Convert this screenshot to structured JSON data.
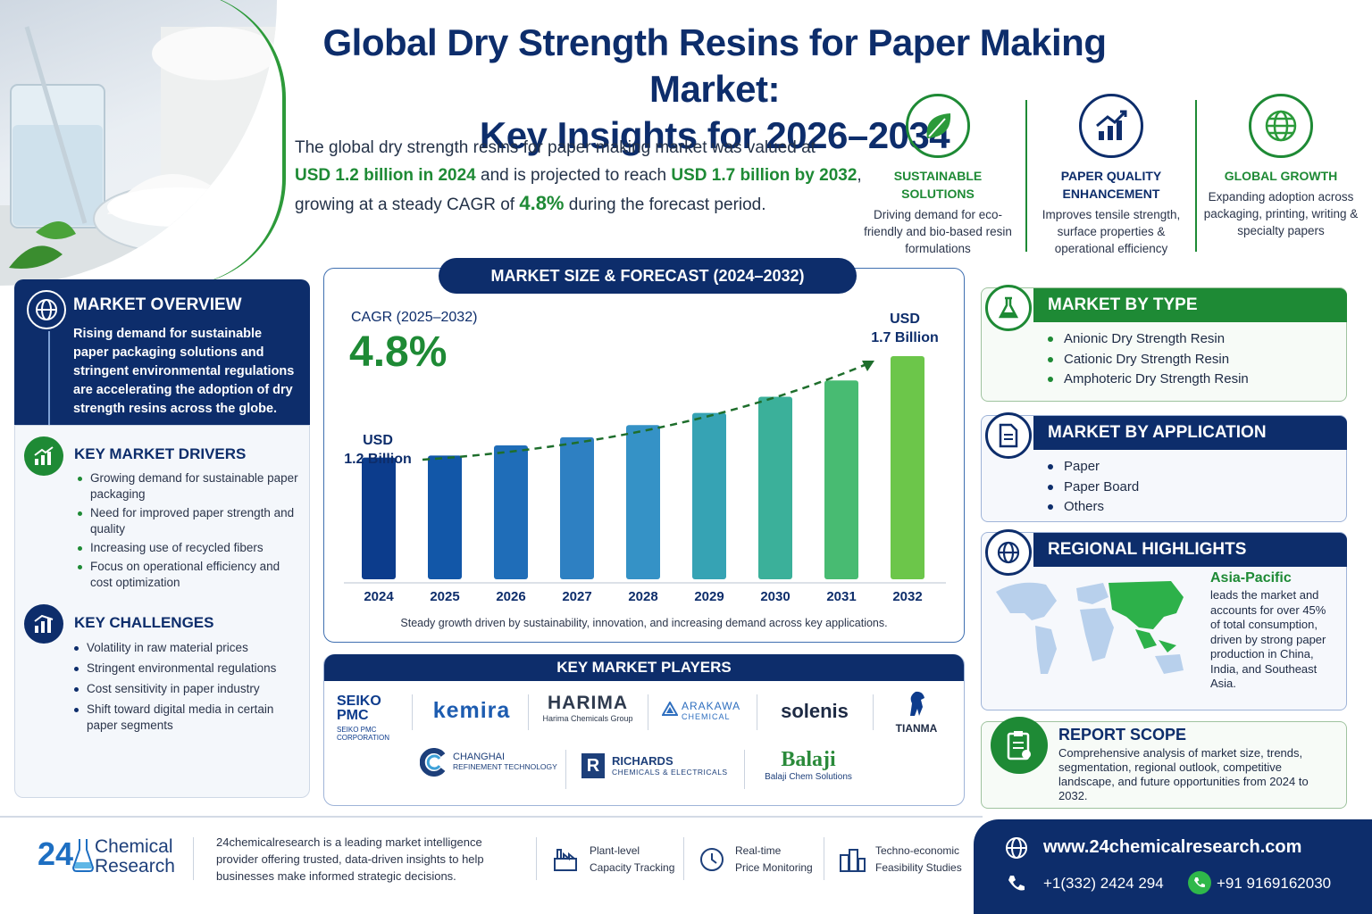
{
  "title_line1": "Global Dry Strength Resins for Paper Making Market:",
  "title_line2": "Key Insights for 2026–2034",
  "intro": {
    "p1": "The global dry strength resins for paper making market was valued at",
    "v1": "USD 1.2 billion in 2024",
    "p2": " and is projected to reach ",
    "v2": "USD 1.7 billion by 2032",
    "p3": ",",
    "p4": "growing at a steady CAGR of ",
    "v3": "4.8%",
    "p5": " during the forecast period."
  },
  "features": [
    {
      "title": "SUSTAINABLE SOLUTIONS",
      "text": "Driving demand for eco-friendly and bio-based resin formulations",
      "icon": "leaf-icon"
    },
    {
      "title": "PAPER QUALITY ENHANCEMENT",
      "text": "Improves tensile strength, surface properties & operational efficiency",
      "icon": "growth-chart-icon"
    },
    {
      "title": "GLOBAL GROWTH",
      "text": "Expanding adoption across packaging, printing, writing & specialty papers",
      "icon": "globe-icon"
    }
  ],
  "overview": {
    "title": "MARKET OVERVIEW",
    "text": "Rising demand for sustainable paper packaging solutions and stringent environmental regulations are accelerating the adoption of dry strength resins across the globe."
  },
  "drivers": {
    "title": "KEY MARKET DRIVERS",
    "items": [
      "Growing demand for sustainable paper packaging",
      "Need for improved paper strength and quality",
      "Increasing use of recycled fibers",
      "Focus on operational efficiency and cost optimization"
    ]
  },
  "challenges": {
    "title": "KEY CHALLENGES",
    "items": [
      "Volatility in raw material prices",
      "Stringent environmental regulations",
      "Cost sensitivity in paper industry",
      "Shift toward digital media in certain paper segments"
    ]
  },
  "forecast": {
    "heading": "MARKET SIZE & FORECAST (2024–2032)",
    "cagr_label": "CAGR (2025–2032)",
    "cagr_value": "4.8%",
    "start_label_1": "USD",
    "start_label_2": "1.2 Billion",
    "end_label_1": "USD",
    "end_label_2": "1.7 Billion",
    "caption": "Steady growth driven by sustainability, innovation, and increasing demand across key applications."
  },
  "chart_data": {
    "type": "bar",
    "categories": [
      "2024",
      "2025",
      "2026",
      "2027",
      "2028",
      "2029",
      "2030",
      "2031",
      "2032"
    ],
    "values": [
      1.2,
      1.21,
      1.26,
      1.3,
      1.36,
      1.42,
      1.5,
      1.58,
      1.7
    ],
    "title": "MARKET SIZE & FORECAST (2024–2032)",
    "ylabel": "",
    "ylim": [
      0.6,
      1.7
    ],
    "bar_colors": [
      "#0c3c8c",
      "#1257a8",
      "#1f6db8",
      "#2e80c2",
      "#3592c6",
      "#36a3b4",
      "#3bb09a",
      "#48bb72",
      "#6cc64a"
    ]
  },
  "type_panel": {
    "title": "MARKET BY TYPE",
    "items": [
      "Anionic Dry Strength Resin",
      "Cationic Dry Strength Resin",
      "Amphoteric Dry Strength Resin"
    ]
  },
  "app_panel": {
    "title": "MARKET BY APPLICATION",
    "items": [
      "Paper",
      "Paper Board",
      "Others"
    ]
  },
  "region_panel": {
    "title": "REGIONAL HIGHLIGHTS",
    "region": "Asia-Pacific",
    "text": "leads the market and accounts for over 45% of total consumption, driven by strong paper production in China, India, and Southeast Asia."
  },
  "scope_panel": {
    "title": "REPORT SCOPE",
    "text": "Comprehensive analysis of market size, trends, segmentation, regional outlook, competitive landscape, and future opportunities from 2024 to 2032."
  },
  "players": {
    "heading": "KEY MARKET PLAYERS",
    "seiko": {
      "l1": "SEIKO",
      "l2": "PMC",
      "l3": "SEIKO PMC",
      "l4": "CORPORATION"
    },
    "kemira": "kemira",
    "harima": {
      "name": "HARIMA",
      "sub": "Harima Chemicals Group"
    },
    "arakawa": {
      "name": "ARAKAWA",
      "sub": "CHEMICAL"
    },
    "solenis": "solenis",
    "tianma": "TIANMA",
    "changhai": {
      "name": "CHANGHAI",
      "sub": "REFINEMENT TECHNOLOGY"
    },
    "richards": {
      "name": "RICHARDS",
      "sub": "CHEMICALS & ELECTRICALS"
    },
    "balaji": {
      "name": "Balaji",
      "sub": "Balaji Chem Solutions"
    }
  },
  "footer": {
    "brand_num": "24",
    "brand_1": "Chemical",
    "brand_2": "Research",
    "about": "24chemicalresearch is a leading market intelligence provider offering trusted, data-driven insights to help businesses make informed strategic decisions.",
    "svc": [
      {
        "l1": "Plant-level",
        "l2": "Capacity Tracking"
      },
      {
        "l1": "Real-time",
        "l2": "Price Monitoring"
      },
      {
        "l1": "Techno-economic",
        "l2": "Feasibility Studies"
      }
    ],
    "website": "www.24chemicalresearch.com",
    "phone1": "+1(332) 2424 294",
    "phone2": "+91 9169162030"
  }
}
